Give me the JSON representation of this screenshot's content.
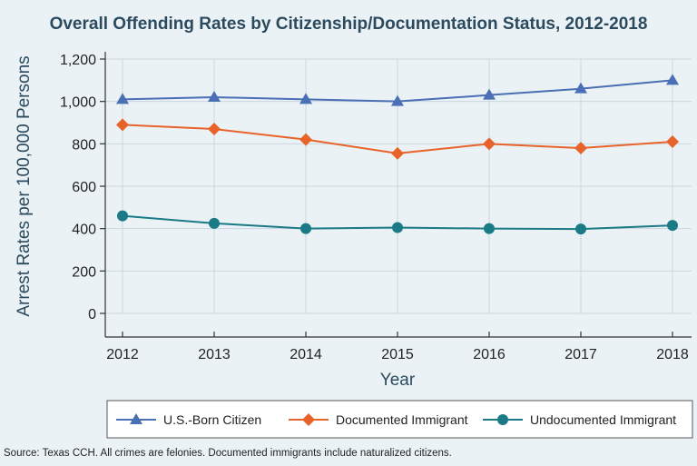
{
  "chart_data": {
    "type": "line",
    "title": "Overall Offending Rates by Citizenship/Documentation Status, 2012-2018",
    "xlabel": "Year",
    "ylabel": "Arrest Rates per 100,000 Persons",
    "categories": [
      "2012",
      "2013",
      "2014",
      "2015",
      "2016",
      "2017",
      "2018"
    ],
    "ylim": [
      0,
      1200
    ],
    "yticks": [
      0,
      200,
      400,
      600,
      800,
      1000,
      1200
    ],
    "ytick_labels": [
      "0",
      "200",
      "400",
      "600",
      "800",
      "1,000",
      "1,200"
    ],
    "grid": true,
    "legend_position": "bottom",
    "series": [
      {
        "name": "U.S.-Born Citizen",
        "marker": "triangle",
        "color": "#4a6fb5",
        "values": [
          1010,
          1020,
          1010,
          1000,
          1030,
          1060,
          1100
        ]
      },
      {
        "name": "Documented Immigrant",
        "marker": "diamond",
        "color": "#e8632a",
        "values": [
          890,
          870,
          820,
          755,
          800,
          780,
          810
        ]
      },
      {
        "name": "Undocumented Immigrant",
        "marker": "circle",
        "color": "#1a7a85",
        "values": [
          460,
          425,
          400,
          405,
          400,
          398,
          415
        ]
      }
    ]
  },
  "source_note": "Source: Texas CCH. All crimes are felonies. Documented immigrants include naturalized citizens."
}
